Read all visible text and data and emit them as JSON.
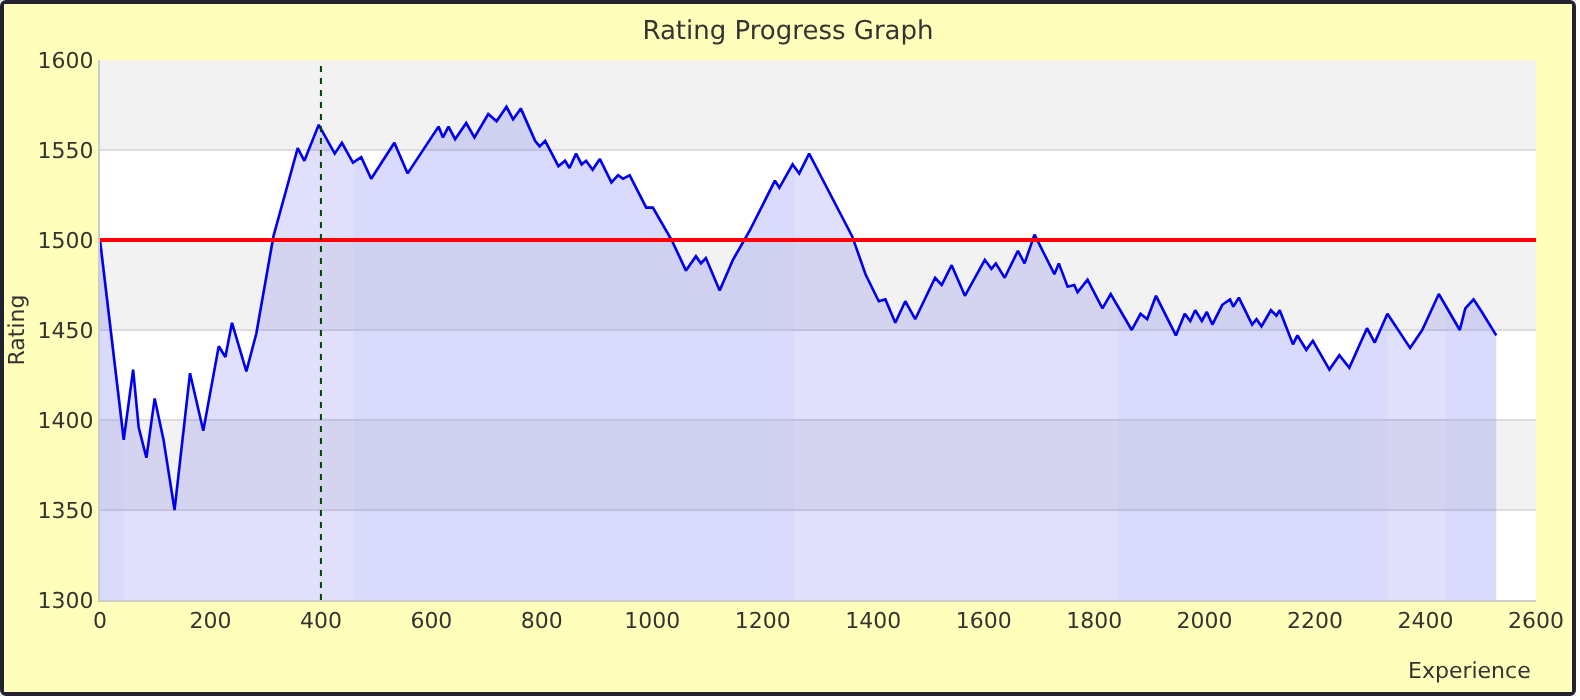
{
  "chart_data": {
    "type": "area",
    "title": "Rating Progress Graph",
    "xlabel": "Experience",
    "ylabel": "Rating",
    "xlim": [
      0,
      2600
    ],
    "xticks": [
      0,
      200,
      400,
      600,
      800,
      1000,
      1200,
      1400,
      1600,
      1800,
      2000,
      2200,
      2400,
      2600
    ],
    "ylim": [
      1300,
      1600
    ],
    "yticks": [
      1300,
      1350,
      1400,
      1450,
      1500,
      1550,
      1600
    ],
    "grid": "y",
    "series": [
      {
        "color": "#ccccf7",
        "x": [
          0,
          43
        ],
        "values": [
          1500,
          1389
        ]
      },
      {
        "color": "#ccccf7",
        "x": [
          459,
          473,
          491,
          533,
          557,
          613,
          621,
          631,
          643,
          663,
          678,
          703,
          718,
          736,
          748,
          762,
          788,
          796,
          806,
          830,
          842,
          850,
          862,
          872,
          880,
          892,
          905,
          926,
          938,
          947,
          959,
          989,
          1001,
          1035,
          1061,
          1079,
          1088,
          1097,
          1122,
          1146,
          1176,
          1222,
          1230,
          1254,
          1258
        ],
        "values": [
          1543,
          1546,
          1534,
          1554,
          1537,
          1563,
          1557,
          1563,
          1556,
          1565,
          1557,
          1570,
          1566,
          1574,
          1567,
          1573,
          1555,
          1552,
          1555,
          1541,
          1544,
          1540,
          1548,
          1542,
          1544,
          1539,
          1545,
          1532,
          1536,
          1534,
          1536,
          1518,
          1518,
          1500,
          1483,
          1491,
          1487,
          1490,
          1472,
          1489,
          1505,
          1533,
          1529,
          1542,
          1540
        ]
      },
      {
        "color": "#ccccf7",
        "x": [
          1842,
          1868,
          1884,
          1896,
          1912,
          1948,
          1964,
          1974,
          1983,
          1995,
          2004,
          2014,
          2032,
          2046,
          2052,
          2062,
          2086,
          2094,
          2103,
          2120,
          2130,
          2136,
          2160,
          2168,
          2184,
          2196,
          2226,
          2244,
          2262,
          2294,
          2308,
          2331
        ],
        "values": [
          1464,
          1450,
          1459,
          1456,
          1469,
          1447,
          1459,
          1455,
          1461,
          1455,
          1460,
          1453,
          1464,
          1467,
          1463,
          1468,
          1453,
          1456,
          1452,
          1461,
          1458,
          1461,
          1442,
          1447,
          1439,
          1444,
          1428,
          1436,
          1429,
          1451,
          1443,
          1459
        ]
      },
      {
        "color": "#ccccf7",
        "x": [
          2436,
          2462,
          2472,
          2487,
          2502,
          2528
        ],
        "values": [
          1464,
          1450,
          1462,
          1467,
          1460,
          1447
        ]
      },
      {
        "color": "#0000ee",
        "x": [
          0,
          43,
          60,
          70,
          84,
          99,
          115,
          135,
          163,
          187,
          215,
          227,
          239,
          265,
          283,
          314,
          358,
          370,
          396,
          425,
          438,
          458,
          473,
          491,
          533,
          557,
          613,
          621,
          631,
          643,
          663,
          678,
          703,
          718,
          736,
          748,
          762,
          788,
          796,
          806,
          830,
          842,
          850,
          862,
          872,
          880,
          892,
          905,
          926,
          938,
          947,
          959,
          989,
          1001,
          1035,
          1061,
          1079,
          1088,
          1097,
          1122,
          1146,
          1176,
          1222,
          1230,
          1254,
          1266,
          1284,
          1362,
          1386,
          1410,
          1422,
          1440,
          1458,
          1476,
          1512,
          1524,
          1542,
          1566,
          1602,
          1614,
          1622,
          1638,
          1662,
          1674,
          1692,
          1728,
          1736,
          1752,
          1764,
          1770,
          1788,
          1815,
          1830,
          1868,
          1884,
          1896,
          1912,
          1948,
          1964,
          1974,
          1983,
          1995,
          2004,
          2014,
          2032,
          2046,
          2052,
          2062,
          2086,
          2094,
          2103,
          2120,
          2130,
          2136,
          2160,
          2168,
          2184,
          2196,
          2226,
          2244,
          2262,
          2294,
          2308,
          2331,
          2372,
          2394,
          2424,
          2462,
          2472,
          2487,
          2502,
          2528
        ],
        "values": [
          1500,
          1389,
          1428,
          1396,
          1379,
          1412,
          1389,
          1350,
          1426,
          1394,
          1441,
          1435,
          1454,
          1427,
          1448,
          1502,
          1551,
          1544,
          1564,
          1548,
          1554,
          1543,
          1546,
          1534,
          1554,
          1537,
          1563,
          1557,
          1563,
          1556,
          1565,
          1557,
          1570,
          1566,
          1574,
          1567,
          1573,
          1555,
          1552,
          1555,
          1541,
          1544,
          1540,
          1548,
          1542,
          1544,
          1539,
          1545,
          1532,
          1536,
          1534,
          1536,
          1518,
          1518,
          1500,
          1483,
          1491,
          1487,
          1490,
          1472,
          1489,
          1505,
          1533,
          1529,
          1542,
          1537,
          1548,
          1502,
          1481,
          1466,
          1467,
          1454,
          1466,
          1456,
          1479,
          1475,
          1486,
          1469,
          1489,
          1484,
          1487,
          1479,
          1494,
          1487,
          1503,
          1481,
          1487,
          1474,
          1475,
          1471,
          1478,
          1462,
          1470,
          1450,
          1459,
          1456,
          1469,
          1447,
          1459,
          1455,
          1461,
          1455,
          1460,
          1453,
          1464,
          1467,
          1463,
          1468,
          1453,
          1456,
          1452,
          1461,
          1458,
          1461,
          1442,
          1447,
          1439,
          1444,
          1428,
          1436,
          1429,
          1451,
          1443,
          1459,
          1440,
          1450,
          1470,
          1450,
          1462,
          1467,
          1460,
          1447
        ]
      }
    ],
    "ref_lines": [
      {
        "axis": "y",
        "value": 1500,
        "color": "#ff0000",
        "line_style": "solid"
      },
      {
        "axis": "x",
        "value": 400,
        "color": "#004400",
        "line_style": "dotted"
      }
    ],
    "bands": [
      {
        "axis": "y",
        "from": 1550,
        "to": 1600,
        "color": "#f2f2f2"
      },
      {
        "axis": "y",
        "from": 1450,
        "to": 1500,
        "color": "#f2f2f2"
      },
      {
        "axis": "y",
        "from": 1350,
        "to": 1400,
        "color": "#f2f2f2"
      }
    ]
  }
}
